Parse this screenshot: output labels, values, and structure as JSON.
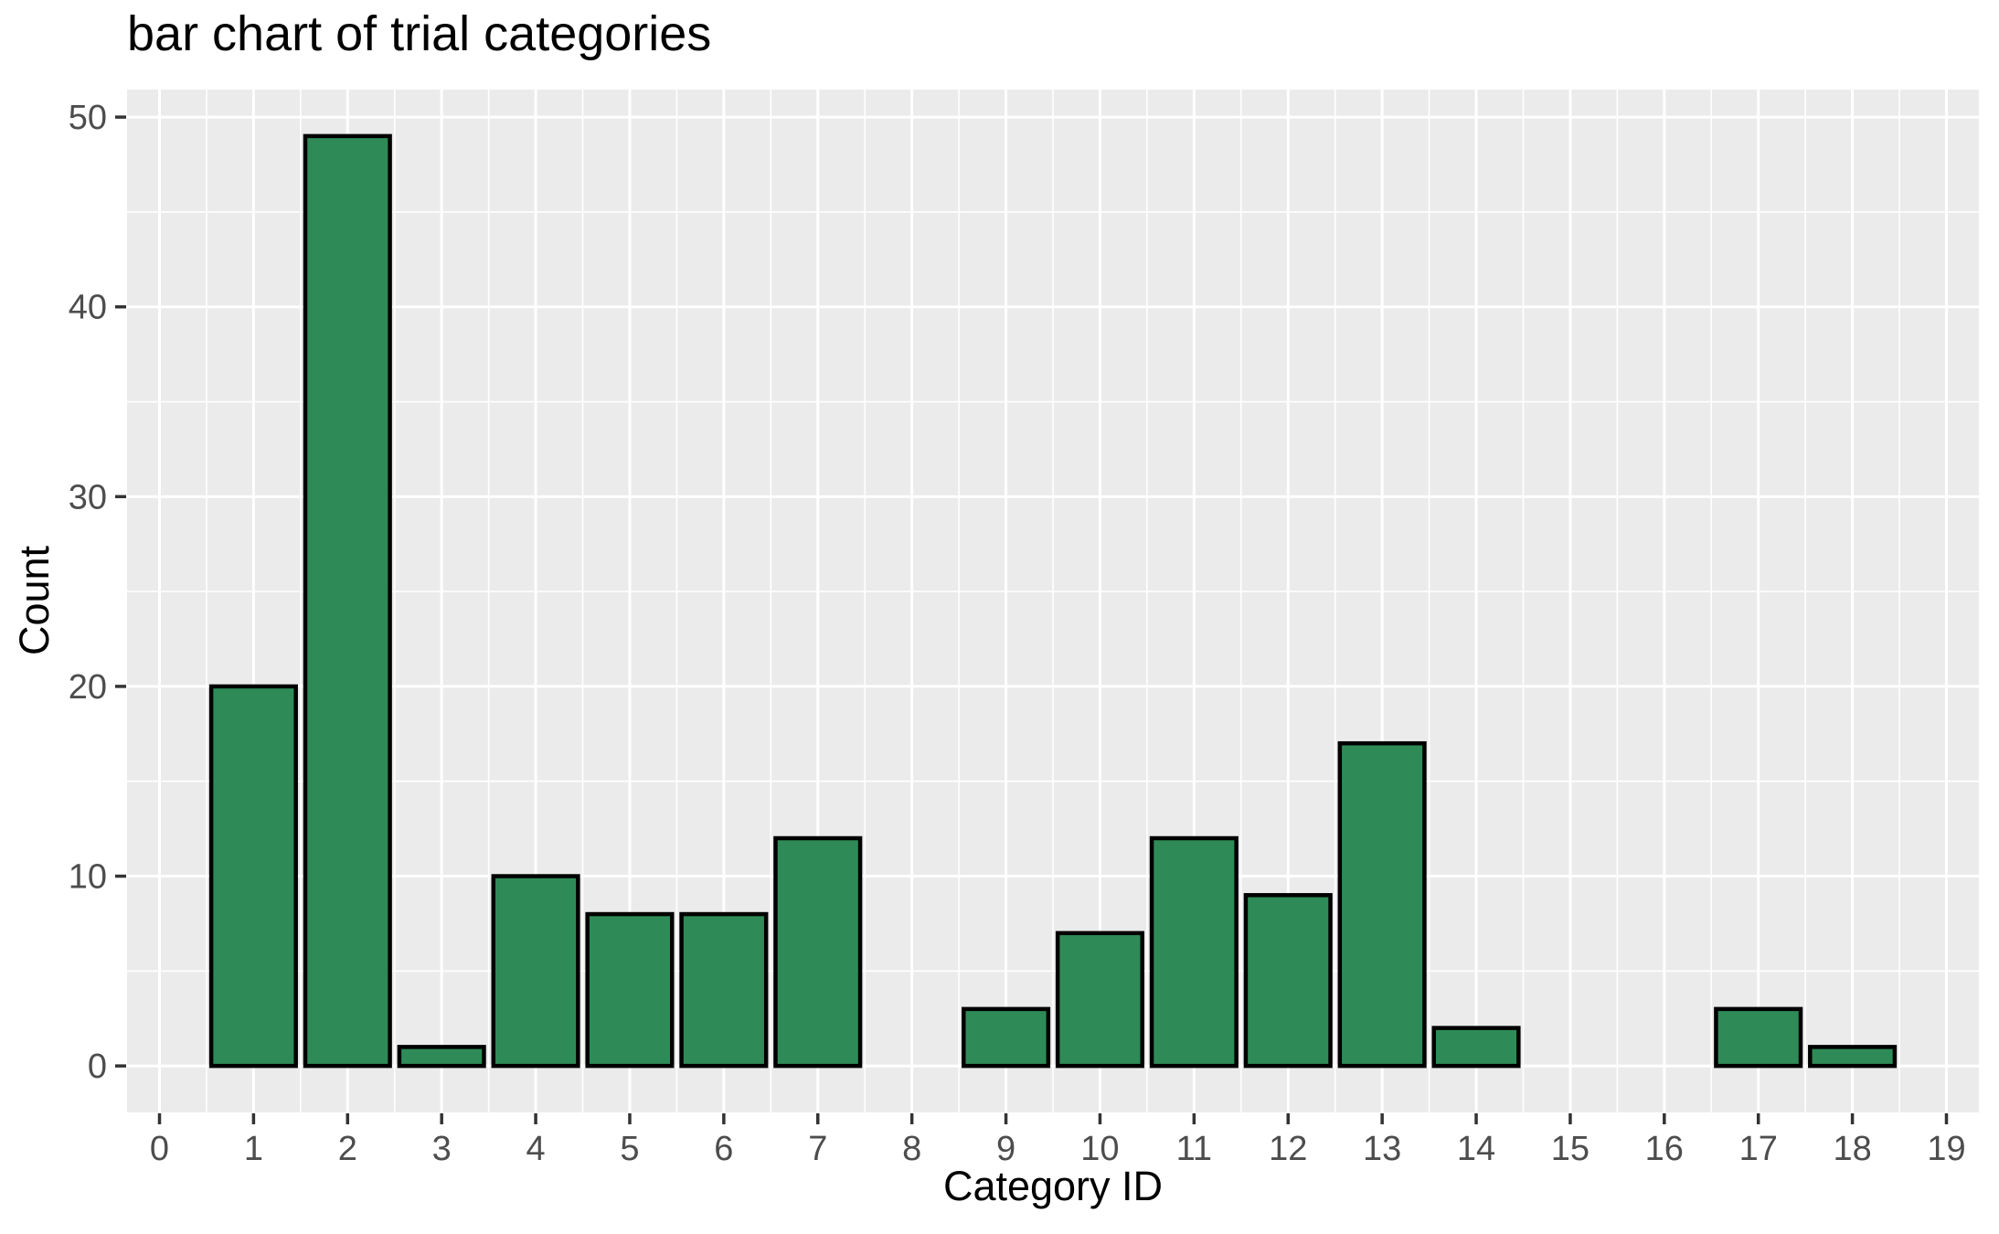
{
  "chart_data": {
    "type": "bar",
    "title": "bar chart of trial categories",
    "xlabel": "Category ID",
    "ylabel": "Count",
    "x": [
      0,
      1,
      2,
      3,
      4,
      5,
      6,
      7,
      8,
      9,
      10,
      11,
      12,
      13,
      14,
      15,
      16,
      17,
      18,
      19
    ],
    "values": [
      0,
      20,
      49,
      1,
      10,
      8,
      8,
      12,
      0,
      3,
      7,
      12,
      9,
      17,
      2,
      0,
      0,
      3,
      1,
      0
    ],
    "x_tick_labels": [
      "0",
      "1",
      "2",
      "3",
      "4",
      "5",
      "6",
      "7",
      "8",
      "9",
      "10",
      "11",
      "12",
      "13",
      "14",
      "15",
      "16",
      "17",
      "18",
      "19"
    ],
    "y_tick_labels": [
      "0",
      "10",
      "20",
      "30",
      "40",
      "50"
    ],
    "y_tick_values": [
      0,
      10,
      20,
      30,
      40,
      50
    ],
    "y_minor_values": [
      5,
      15,
      25,
      35,
      45
    ],
    "x_minor_step": 0.5,
    "bar_width": 0.9,
    "xlim": [
      -0.345,
      19.345
    ],
    "ylim": [
      -2.45,
      51.45
    ],
    "grid": true,
    "legend_position": "none",
    "colors": {
      "bar_fill": "#2E8B57",
      "bar_stroke": "#000000",
      "panel_background": "#EBEBEB",
      "gridline": "#FFFFFF",
      "tick_label": "#4D4D4D",
      "tick_mark": "#333333",
      "title_text": "#000000"
    }
  }
}
